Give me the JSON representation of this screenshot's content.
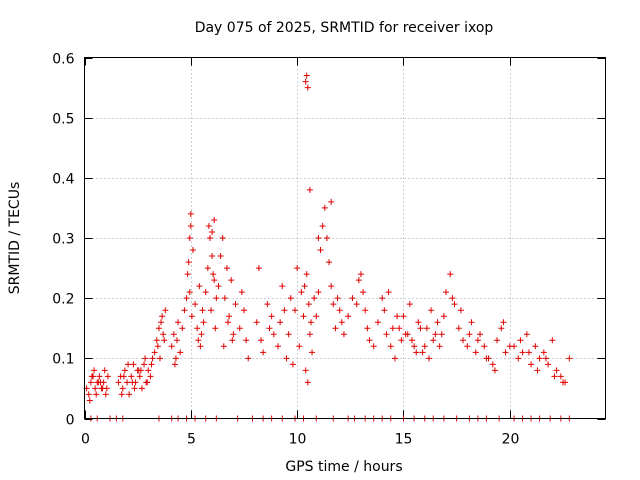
{
  "chart_data": {
    "type": "scatter",
    "title": "Day 075 of 2025, SRMTID for receiver ixop",
    "xlabel": "GPS time / hours",
    "ylabel": "SRMTID / TECUs",
    "xlim": [
      0,
      24.5
    ],
    "ylim": [
      0,
      0.6
    ],
    "x_ticks": [
      0,
      5,
      10,
      15,
      20
    ],
    "y_ticks": [
      0,
      0.1,
      0.2,
      0.3,
      0.4,
      0.5,
      0.6
    ],
    "x_tick_labels": [
      "0",
      "5",
      "10",
      "15",
      "20"
    ],
    "y_tick_labels": [
      "0",
      "0.1",
      "0.2",
      "0.3",
      "0.4",
      "0.5",
      "0.6"
    ],
    "grid": true,
    "marker": "plus",
    "marker_color": "#e00000",
    "series": [
      {
        "name": "SRMTID",
        "x": [
          0.1,
          0.2,
          0.3,
          0.4,
          0.5,
          0.6,
          0.7,
          0.8,
          0.9,
          1.0,
          1.1,
          0.25,
          0.45,
          0.65,
          0.85,
          0.35,
          0.55,
          0.75,
          0.95,
          1.05,
          1.6,
          1.7,
          1.8,
          1.9,
          2.0,
          2.1,
          2.2,
          2.3,
          2.4,
          2.5,
          2.6,
          2.7,
          2.8,
          2.9,
          3.0,
          3.1,
          3.2,
          1.75,
          2.05,
          2.35,
          2.65,
          2.95,
          3.15,
          1.85,
          2.25,
          2.55,
          2.85,
          3.3,
          3.4,
          3.5,
          3.6,
          3.7,
          3.8,
          3.45,
          3.65,
          3.55,
          3.75,
          4.1,
          4.2,
          4.3,
          4.4,
          4.5,
          4.25,
          4.35,
          4.6,
          4.7,
          4.8,
          4.9,
          5.0,
          5.1,
          4.85,
          4.95,
          5.05,
          5.2,
          5.3,
          5.4,
          5.5,
          5.6,
          5.35,
          5.45,
          5.55,
          5.7,
          5.8,
          5.9,
          6.0,
          6.1,
          6.2,
          5.85,
          5.95,
          6.05,
          6.15,
          6.3,
          6.4,
          6.5,
          6.6,
          6.7,
          6.8,
          6.9,
          7.0,
          7.1,
          6.55,
          6.75,
          6.95,
          7.3,
          7.4,
          7.5,
          7.6,
          7.7,
          8.1,
          8.2,
          8.3,
          8.4,
          8.6,
          8.7,
          8.8,
          8.9,
          9.1,
          9.2,
          9.3,
          9.4,
          9.5,
          9.6,
          9.7,
          9.8,
          9.9,
          10.0,
          10.1,
          10.2,
          10.3,
          10.4,
          10.5,
          10.6,
          10.7,
          10.8,
          10.35,
          10.45,
          10.55,
          10.65,
          10.9,
          11.0,
          11.1,
          11.2,
          11.3,
          11.4,
          11.5,
          11.6,
          11.7,
          11.8,
          11.9,
          12.0,
          12.1,
          12.2,
          12.4,
          12.6,
          12.8,
          12.9,
          13.0,
          13.1,
          13.2,
          13.3,
          13.4,
          13.6,
          13.8,
          14.0,
          14.2,
          14.4,
          14.6,
          14.8,
          15.0,
          15.2,
          15.4,
          15.6,
          15.8,
          16.0,
          16.2,
          16.4,
          16.6,
          16.8,
          14.1,
          14.3,
          14.5,
          14.7,
          14.9,
          15.1,
          15.3,
          15.5,
          15.7,
          15.9,
          16.1,
          16.3,
          16.5,
          16.7,
          16.9,
          17.0,
          17.2,
          17.4,
          17.6,
          17.8,
          18.0,
          18.2,
          18.4,
          18.6,
          18.8,
          19.0,
          19.2,
          19.4,
          19.6,
          19.8,
          20.0,
          17.3,
          17.7,
          18.1,
          18.5,
          18.9,
          19.3,
          19.7,
          20.2,
          20.4,
          20.6,
          20.8,
          21.0,
          21.2,
          21.4,
          21.6,
          21.8,
          22.0,
          22.2,
          22.4,
          22.6,
          22.8,
          20.5,
          20.9,
          21.3,
          21.7,
          22.1,
          22.5,
          10.4,
          10.45,
          10.5,
          10.6,
          11.0,
          11.6,
          6.1,
          6.0,
          5.0,
          4.95,
          0.3,
          0.6,
          1.2,
          1.5,
          1.8,
          3.5,
          4.1,
          4.4,
          4.8,
          5.2,
          5.7,
          6.2,
          7.2,
          7.9,
          8.4,
          8.8,
          9.3,
          9.9,
          10.3,
          10.9,
          11.7,
          12.4,
          12.7,
          13.2,
          13.6,
          14.0,
          14.4,
          15.0,
          15.5,
          16.0,
          16.4,
          16.9,
          17.5,
          18.1,
          18.5,
          18.9,
          19.5,
          20.2,
          20.6,
          21.0,
          21.4,
          21.9,
          22.4,
          22.8
        ],
        "y": [
          0.05,
          0.04,
          0.06,
          0.07,
          0.05,
          0.06,
          0.07,
          0.05,
          0.06,
          0.04,
          0.07,
          0.03,
          0.08,
          0.06,
          0.05,
          0.07,
          0.04,
          0.06,
          0.08,
          0.05,
          0.06,
          0.07,
          0.05,
          0.08,
          0.06,
          0.04,
          0.07,
          0.09,
          0.06,
          0.08,
          0.07,
          0.05,
          0.09,
          0.06,
          0.08,
          0.07,
          0.1,
          0.04,
          0.09,
          0.05,
          0.08,
          0.06,
          0.09,
          0.07,
          0.06,
          0.08,
          0.1,
          0.11,
          0.13,
          0.15,
          0.16,
          0.14,
          0.18,
          0.12,
          0.17,
          0.1,
          0.13,
          0.12,
          0.14,
          0.1,
          0.16,
          0.11,
          0.09,
          0.13,
          0.15,
          0.18,
          0.2,
          0.26,
          0.32,
          0.28,
          0.24,
          0.21,
          0.17,
          0.19,
          0.15,
          0.22,
          0.14,
          0.16,
          0.13,
          0.12,
          0.18,
          0.21,
          0.25,
          0.3,
          0.27,
          0.23,
          0.2,
          0.32,
          0.18,
          0.24,
          0.15,
          0.22,
          0.27,
          0.3,
          0.2,
          0.25,
          0.17,
          0.23,
          0.14,
          0.19,
          0.12,
          0.16,
          0.13,
          0.15,
          0.21,
          0.18,
          0.13,
          0.1,
          0.16,
          0.25,
          0.13,
          0.11,
          0.19,
          0.15,
          0.17,
          0.14,
          0.12,
          0.16,
          0.22,
          0.18,
          0.1,
          0.14,
          0.2,
          0.09,
          0.18,
          0.25,
          0.12,
          0.21,
          0.17,
          0.08,
          0.06,
          0.14,
          0.11,
          0.2,
          0.22,
          0.24,
          0.19,
          0.16,
          0.17,
          0.21,
          0.28,
          0.32,
          0.35,
          0.3,
          0.26,
          0.22,
          0.19,
          0.15,
          0.2,
          0.18,
          0.16,
          0.14,
          0.17,
          0.2,
          0.19,
          0.23,
          0.24,
          0.21,
          0.18,
          0.15,
          0.13,
          0.12,
          0.16,
          0.2,
          0.14,
          0.12,
          0.1,
          0.15,
          0.17,
          0.14,
          0.13,
          0.11,
          0.15,
          0.12,
          0.1,
          0.13,
          0.16,
          0.14,
          0.18,
          0.21,
          0.15,
          0.17,
          0.13,
          0.14,
          0.19,
          0.12,
          0.16,
          0.11,
          0.15,
          0.18,
          0.14,
          0.12,
          0.17,
          0.21,
          0.24,
          0.19,
          0.15,
          0.13,
          0.12,
          0.16,
          0.11,
          0.14,
          0.12,
          0.1,
          0.09,
          0.13,
          0.15,
          0.11,
          0.12,
          0.2,
          0.18,
          0.14,
          0.13,
          0.1,
          0.08,
          0.16,
          0.12,
          0.1,
          0.11,
          0.14,
          0.09,
          0.12,
          0.1,
          0.11,
          0.09,
          0.13,
          0.08,
          0.07,
          0.06,
          0.1,
          0.13,
          0.11,
          0.08,
          0.1,
          0.07,
          0.06,
          0.56,
          0.57,
          0.55,
          0.38,
          0.3,
          0.36,
          0.33,
          0.31,
          0.34,
          0.3,
          0,
          0,
          0,
          0,
          0,
          0,
          0,
          0,
          0,
          0,
          0,
          0,
          0,
          0,
          0,
          0,
          0,
          0,
          0,
          0,
          0,
          0,
          0,
          0,
          0,
          0,
          0,
          0,
          0,
          0,
          0,
          0,
          0,
          0,
          0,
          0,
          0,
          0,
          0,
          0,
          0,
          0,
          0,
          0
        ]
      }
    ]
  }
}
